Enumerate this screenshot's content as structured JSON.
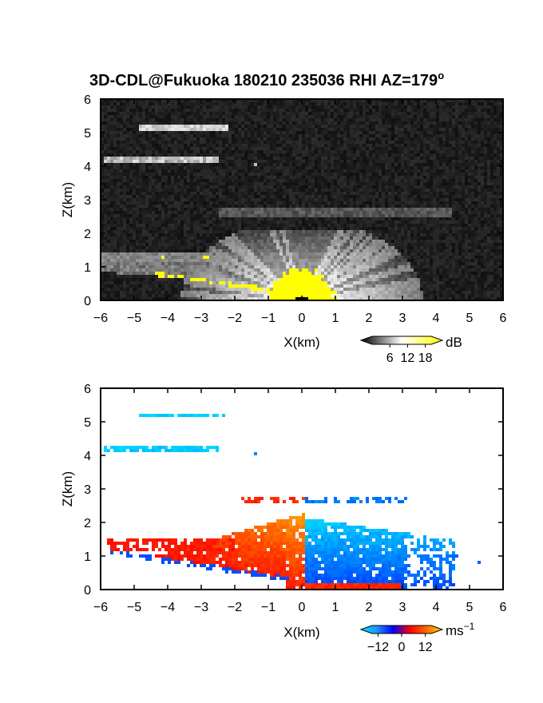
{
  "chart_data": [
    {
      "type": "heatmap",
      "title": "3D-CDL@Fukuoka 180210 235036 RHI AZ=179",
      "title_superscript": "o",
      "xlabel": "X(km)",
      "ylabel": "Z(km)",
      "xlim": [
        -6,
        6
      ],
      "ylim": [
        0,
        6
      ],
      "x_ticks": [
        "−6",
        "−5",
        "−4",
        "−3",
        "−2",
        "−1",
        "0",
        "1",
        "2",
        "3",
        "4",
        "5",
        "6"
      ],
      "y_ticks": [
        "0",
        "1",
        "2",
        "3",
        "4",
        "5",
        "6"
      ],
      "background": "#111111",
      "colorbar": {
        "label": "dB",
        "ticks": [
          "6",
          "12",
          "18"
        ],
        "range": [
          0,
          20
        ],
        "colors": [
          "#000000",
          "#ffffff",
          "#ffff00"
        ]
      },
      "features": [
        {
          "name": "layer",
          "x": [
            -4.9,
            -2.2
          ],
          "z": 5.15,
          "level": 0.85
        },
        {
          "name": "layer",
          "x": [
            -5.9,
            -2.5
          ],
          "z": 4.2,
          "level": 0.8
        },
        {
          "name": "spot",
          "x": [
            -1.45,
            -1.3
          ],
          "z": 4.05,
          "level": 0.7
        },
        {
          "name": "layer",
          "x": [
            -2.5,
            4.5
          ],
          "z": 2.6,
          "level": 0.35
        },
        {
          "name": "fan",
          "center_x": 0,
          "radius_km": 3.5,
          "height_km": 2.1
        },
        {
          "name": "strong-echo",
          "x": [
            -1.0,
            1.0
          ],
          "z_top": 1.0,
          "color": "#ffff00"
        }
      ]
    },
    {
      "type": "heatmap",
      "title": "",
      "xlabel": "X(km)",
      "ylabel": "Z(km)",
      "xlim": [
        -6,
        6
      ],
      "ylim": [
        0,
        6
      ],
      "x_ticks": [
        "−6",
        "−5",
        "−4",
        "−3",
        "−2",
        "−1",
        "0",
        "1",
        "2",
        "3",
        "4",
        "5",
        "6"
      ],
      "y_ticks": [
        "0",
        "1",
        "2",
        "3",
        "4",
        "5",
        "6"
      ],
      "colorbar": {
        "label": "ms",
        "label_superscript": "−1",
        "ticks": [
          "−12",
          "0",
          "12"
        ],
        "range": [
          -15,
          15
        ],
        "colors": [
          "#00e5ff",
          "#1e90ff",
          "#0000ff",
          "#ff0000",
          "#ff6600",
          "#ffd700"
        ]
      },
      "features": [
        {
          "name": "layer",
          "x": [
            -4.9,
            -2.2
          ],
          "z": 5.2,
          "velocity": -12
        },
        {
          "name": "layer",
          "x": [
            -5.9,
            -2.5
          ],
          "z": 4.2,
          "velocity": -12
        },
        {
          "name": "spot",
          "x": [
            -1.45,
            -1.3
          ],
          "z": 4.05,
          "velocity": -7
        },
        {
          "name": "towards-left",
          "x": [
            -5.8,
            0.1
          ],
          "z": [
            0,
            2.3
          ],
          "velocity": 9
        },
        {
          "name": "towards-right",
          "x": [
            0.1,
            4.5
          ],
          "z": [
            0,
            2.2
          ],
          "velocity": -6
        },
        {
          "name": "upper-echoes",
          "x": [
            -1.8,
            3.1
          ],
          "z": [
            2.5,
            2.8
          ],
          "velocity": 0
        }
      ]
    }
  ]
}
